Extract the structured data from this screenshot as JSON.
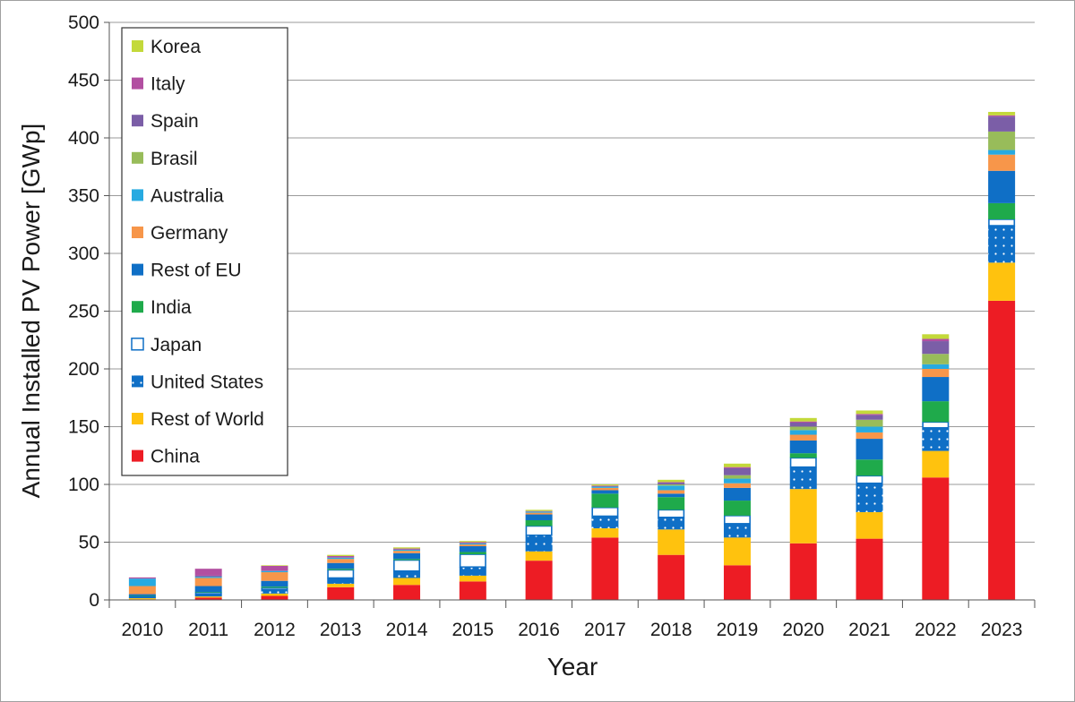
{
  "chart_data": {
    "type": "bar",
    "stacked": true,
    "title": "",
    "xlabel": "Year",
    "ylabel": "Annual Installed PV Power [GWp]",
    "ylim": [
      0,
      500
    ],
    "yticks": [
      0,
      50,
      100,
      150,
      200,
      250,
      300,
      350,
      400,
      450,
      500
    ],
    "grid": true,
    "legend_position": "top-left",
    "categories": [
      "2010",
      "2011",
      "2012",
      "2013",
      "2014",
      "2015",
      "2016",
      "2017",
      "2018",
      "2019",
      "2020",
      "2021",
      "2022",
      "2023"
    ],
    "series": [
      {
        "name": "China",
        "color": "#ed1c24",
        "pattern": "solid",
        "values": [
          0.5,
          2,
          3.5,
          11,
          13,
          16,
          34,
          54,
          39,
          30,
          49,
          53,
          106,
          259
        ]
      },
      {
        "name": "Rest of World",
        "color": "#ffc20e",
        "pattern": "solid",
        "values": [
          1,
          1,
          2,
          3,
          6,
          5,
          8,
          8,
          22,
          24,
          47,
          23,
          23,
          33
        ]
      },
      {
        "name": "United States",
        "color": "#0f6fc6",
        "pattern": "dots",
        "values": [
          1,
          2,
          3.5,
          5,
          6,
          7.5,
          14,
          10.5,
          10.5,
          12,
          19,
          25,
          20,
          32
        ]
      },
      {
        "name": "Japan",
        "color": "#ffffff",
        "pattern": "outline",
        "values": [
          1,
          1.5,
          1.5,
          7,
          9.5,
          11,
          8,
          7.5,
          6.5,
          7,
          8,
          6.5,
          5,
          5.5
        ]
      },
      {
        "name": "India",
        "color": "#1faa4b",
        "pattern": "solid",
        "values": [
          0.5,
          0.5,
          1,
          1,
          1,
          2,
          5,
          12,
          11,
          13,
          4,
          14,
          18,
          14
        ]
      },
      {
        "name": "Rest of EU",
        "color": "#0f6fc6",
        "pattern": "solid",
        "values": [
          1,
          5,
          5,
          5,
          5,
          5,
          5,
          3,
          3,
          11,
          11,
          18,
          21,
          28
        ]
      },
      {
        "name": "Germany",
        "color": "#f7964a",
        "pattern": "solid",
        "values": [
          7,
          7,
          7.5,
          3.5,
          2,
          1.5,
          1.5,
          2,
          3,
          4,
          5,
          5.5,
          7,
          14
        ]
      },
      {
        "name": "Australia",
        "color": "#27aae1",
        "pattern": "solid",
        "values": [
          6.5,
          1,
          1,
          1,
          1,
          1,
          1,
          1,
          4,
          4,
          4,
          5,
          4,
          4
        ]
      },
      {
        "name": "Brasil",
        "color": "#98bc5a",
        "pattern": "solid",
        "values": [
          0,
          0,
          0,
          0,
          0,
          0,
          0,
          0,
          1,
          3,
          3,
          6,
          9,
          16
        ]
      },
      {
        "name": "Spain",
        "color": "#7b5ea7",
        "pattern": "solid",
        "values": [
          0,
          1,
          0.5,
          0.5,
          0,
          0,
          0,
          0.5,
          1.5,
          6,
          3.5,
          4,
          11,
          13
        ]
      },
      {
        "name": "Italy",
        "color": "#b24fa1",
        "pattern": "solid",
        "values": [
          1,
          6,
          4,
          1,
          1,
          1,
          0.5,
          0.5,
          0.5,
          1,
          1,
          1,
          2,
          1
        ]
      },
      {
        "name": "Korea",
        "color": "#c3d93a",
        "pattern": "solid",
        "values": [
          0,
          0,
          0.5,
          1,
          1,
          1,
          1,
          1,
          2,
          3,
          3,
          3,
          4,
          3
        ]
      }
    ]
  }
}
